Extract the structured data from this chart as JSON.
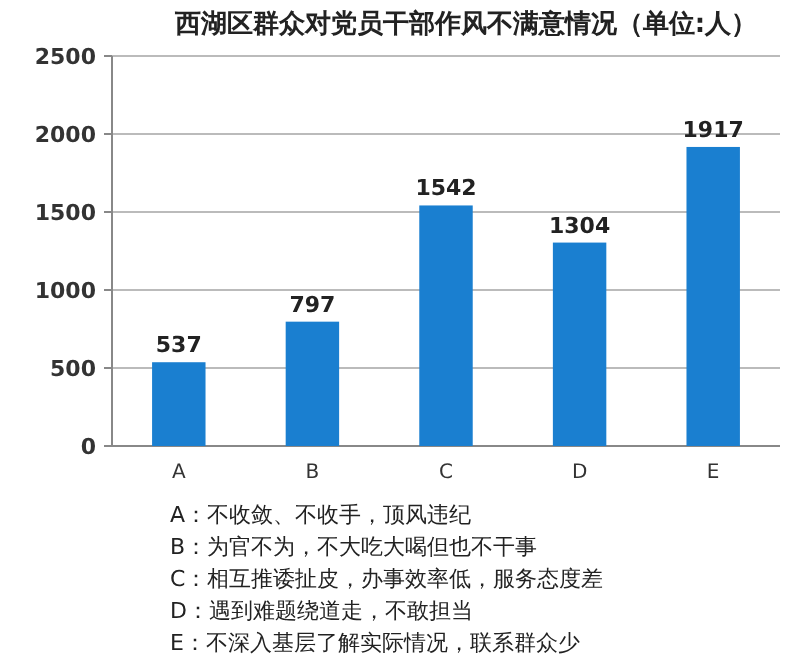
{
  "chart_data": {
    "type": "bar",
    "title": "西湖区群众对党员干部作风不满意情况（单位:人）",
    "categories": [
      "A",
      "B",
      "C",
      "D",
      "E"
    ],
    "values": [
      537,
      797,
      1542,
      1304,
      1917
    ],
    "color": "#1a7fd0",
    "ylim": [
      0,
      2500
    ],
    "yticks": [
      0,
      500,
      1000,
      1500,
      2000,
      2500
    ],
    "grid": "y",
    "data_labels": true,
    "annotations": [
      "A：不收敛、不收手，顶风违纪",
      "B：为官不为，不大吃大喝但也不干事",
      "C：相互推诿扯皮，办事效率低，服务态度差",
      "D：遇到难题绕道走，不敢担当",
      "E：不深入基层了解实际情况，联系群众少"
    ]
  }
}
